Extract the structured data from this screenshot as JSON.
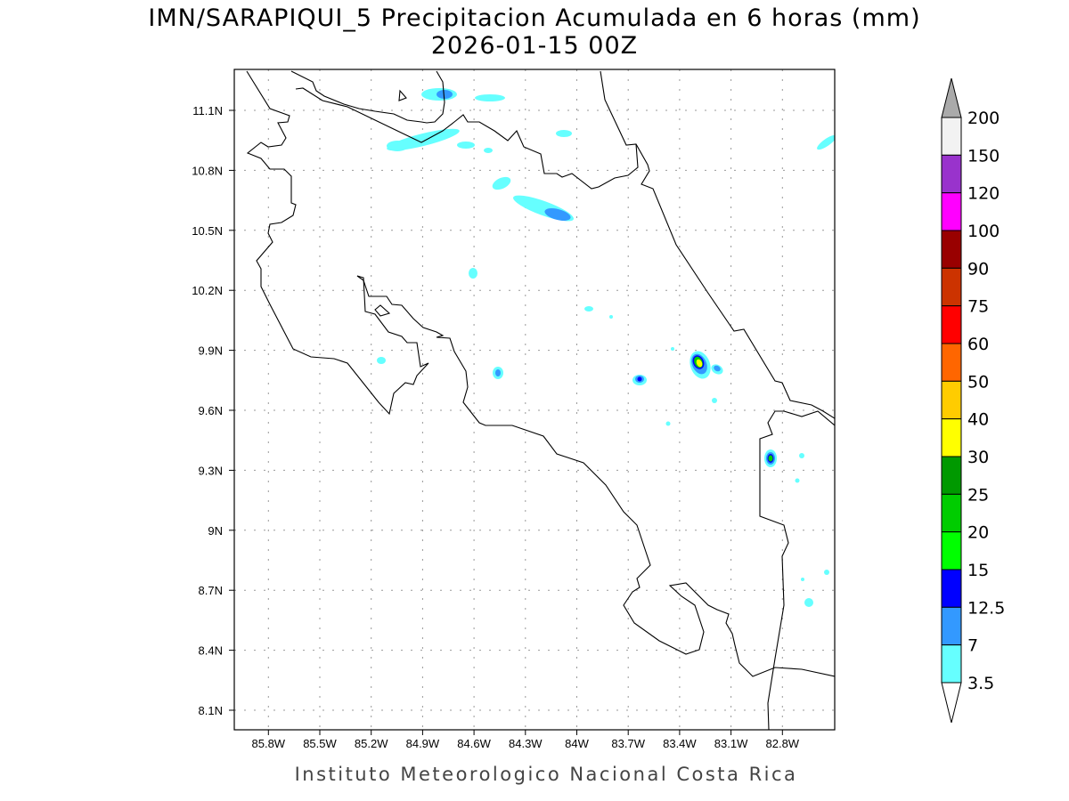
{
  "title": {
    "line1": "IMN/SARAPIQUI_5 Precipitacion Acumulada en 6 horas (mm)",
    "line2": "2026-01-15 00Z"
  },
  "footer": "Instituto Meteorologico Nacional Costa Rica",
  "map": {
    "lon_labels": [
      "85.8W",
      "85.5W",
      "85.2W",
      "84.9W",
      "84.6W",
      "84.3W",
      "84W",
      "83.7W",
      "83.4W",
      "83.1W",
      "82.8W"
    ],
    "lat_labels": [
      "11.1N",
      "10.8N",
      "10.5N",
      "10.2N",
      "9.9N",
      "9.6N",
      "9.3N",
      "9N",
      "8.7N",
      "8.4N",
      "8.1N"
    ],
    "grid": "dotted"
  },
  "colorbar": {
    "labels": [
      "200",
      "150",
      "120",
      "100",
      "90",
      "75",
      "60",
      "50",
      "40",
      "30",
      "25",
      "20",
      "15",
      "12.5",
      "7",
      "3.5"
    ],
    "colors": [
      "#f2f2f2",
      "#9933cc",
      "#ff00ff",
      "#990000",
      "#cc3300",
      "#ff0000",
      "#ff6600",
      "#ffcc00",
      "#ffff00",
      "#009900",
      "#00cc00",
      "#00ff00",
      "#0000ff",
      "#3399ff",
      "#66ffff"
    ],
    "over_color": "#aaaaaa",
    "under_color": "#ffffff"
  }
}
